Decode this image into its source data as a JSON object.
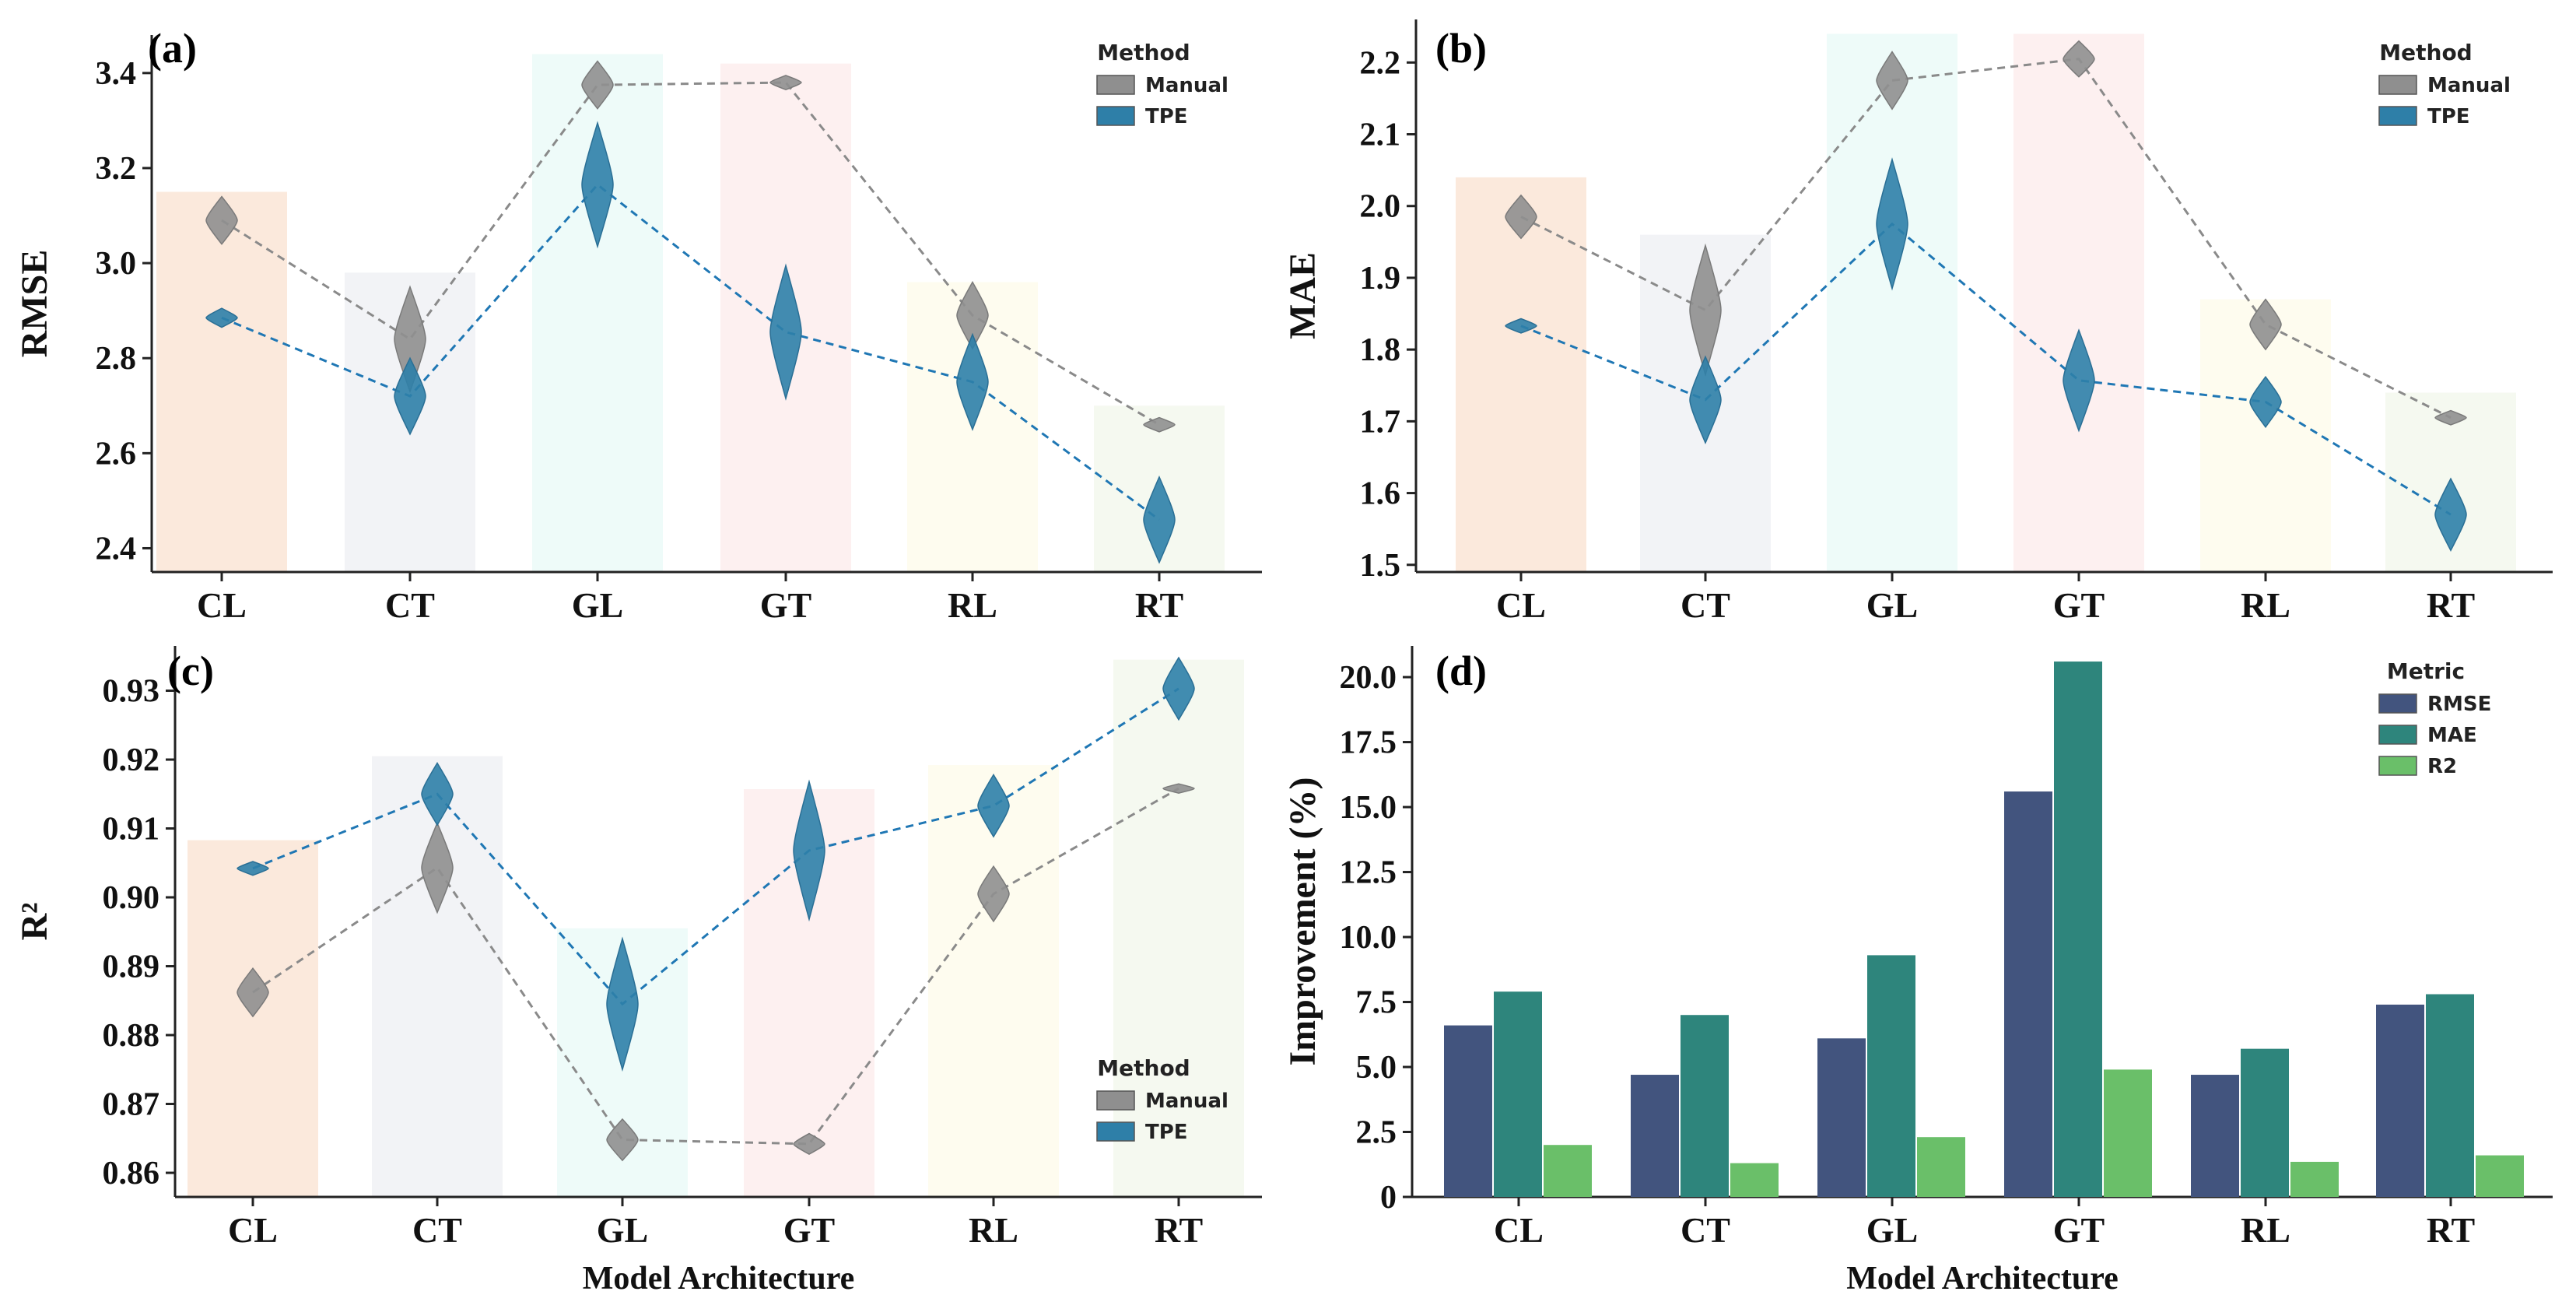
{
  "chart_data": [
    {
      "panel": "(a)",
      "type": "violin",
      "categories": [
        "CL",
        "CT",
        "GL",
        "GT",
        "RL",
        "RT"
      ],
      "ylabel": "RMSE",
      "xlabel": "",
      "ylim": [
        2.35,
        3.48
      ],
      "yticks": [
        "2.4",
        "2.6",
        "2.8",
        "3.0",
        "3.2",
        "3.4"
      ],
      "background_bars": [
        3.15,
        2.98,
        3.44,
        3.42,
        2.96,
        2.7
      ],
      "series": [
        {
          "name": "Manual",
          "values": [
            3.09,
            2.84,
            3.375,
            3.38,
            2.89,
            2.66
          ],
          "spread": [
            0.05,
            0.11,
            0.05,
            0.015,
            0.07,
            0.015
          ],
          "color": "#8f8f8f"
        },
        {
          "name": "TPE",
          "values": [
            2.885,
            2.72,
            3.165,
            2.855,
            2.75,
            2.46
          ],
          "spread": [
            0.02,
            0.08,
            0.13,
            0.14,
            0.1,
            0.09
          ],
          "color": "#2e7fa8"
        }
      ],
      "legend_title": "Method",
      "legend_position": "top-right"
    },
    {
      "panel": "(b)",
      "type": "violin",
      "categories": [
        "CL",
        "CT",
        "GL",
        "GT",
        "RL",
        "RT"
      ],
      "ylabel": "MAE",
      "xlabel": "",
      "ylim": [
        1.49,
        2.26
      ],
      "yticks": [
        "1.5",
        "1.6",
        "1.7",
        "1.8",
        "1.9",
        "2.0",
        "2.1",
        "2.2"
      ],
      "background_bars": [
        2.04,
        1.96,
        2.24,
        2.24,
        1.87,
        1.74
      ],
      "series": [
        {
          "name": "Manual",
          "values": [
            1.985,
            1.855,
            2.175,
            2.205,
            1.835,
            1.705
          ],
          "spread": [
            0.03,
            0.09,
            0.04,
            0.025,
            0.035,
            0.01
          ],
          "color": "#8f8f8f"
        },
        {
          "name": "TPE",
          "values": [
            1.833,
            1.73,
            1.975,
            1.757,
            1.727,
            1.57
          ],
          "spread": [
            0.01,
            0.06,
            0.09,
            0.07,
            0.035,
            0.05
          ],
          "color": "#2e7fa8"
        }
      ],
      "legend_title": "Method",
      "legend_position": "top-right"
    },
    {
      "panel": "(c)",
      "type": "violin",
      "categories": [
        "CL",
        "CT",
        "GL",
        "GT",
        "RL",
        "RT"
      ],
      "ylabel": "R²",
      "xlabel": "Model Architecture",
      "ylim": [
        0.8565,
        0.9365
      ],
      "yticks": [
        "0.86",
        "0.87",
        "0.88",
        "0.89",
        "0.90",
        "0.91",
        "0.92",
        "0.93"
      ],
      "background_bars": [
        0.9083,
        0.9205,
        0.8955,
        0.9157,
        0.9192,
        0.9345
      ],
      "series": [
        {
          "name": "Manual",
          "values": [
            0.8862,
            0.9043,
            0.8648,
            0.8642,
            0.9005,
            0.9158
          ],
          "spread": [
            0.0035,
            0.0065,
            0.003,
            0.0015,
            0.004,
            0.0005
          ],
          "color": "#8f8f8f"
        },
        {
          "name": "TPE",
          "values": [
            0.9042,
            0.915,
            0.8845,
            0.9068,
            0.9133,
            0.9303
          ],
          "spread": [
            0.001,
            0.0045,
            0.0095,
            0.01,
            0.0045,
            0.0045
          ],
          "color": "#2e7fa8"
        }
      ],
      "legend_title": "Method",
      "legend_position": "lower-right"
    },
    {
      "panel": "(d)",
      "type": "bar",
      "categories": [
        "CL",
        "CT",
        "GL",
        "GT",
        "RL",
        "RT"
      ],
      "ylabel": "Improvement (%)",
      "xlabel": "Model Architecture",
      "ylim": [
        0,
        21.2
      ],
      "yticks": [
        "0",
        "2.5",
        "5.0",
        "7.5",
        "10.0",
        "12.5",
        "15.0",
        "17.5",
        "20.0"
      ],
      "series": [
        {
          "name": "RMSE",
          "values": [
            6.6,
            4.7,
            6.1,
            15.6,
            4.7,
            7.4
          ],
          "color": "#42547e"
        },
        {
          "name": "MAE",
          "values": [
            7.9,
            7.0,
            9.3,
            20.6,
            5.7,
            7.8
          ],
          "color": "#2e857c"
        },
        {
          "name": "R2",
          "values": [
            2.0,
            1.3,
            2.3,
            4.9,
            1.35,
            1.6
          ],
          "color": "#6abf69"
        }
      ],
      "legend_title": "Metric",
      "legend_position": "top-right"
    }
  ],
  "category_bg_colors": [
    "#fbe9dc",
    "#f2f3f6",
    "#eefbf9",
    "#fdf0f0",
    "#fefcef",
    "#f5f9f0"
  ]
}
